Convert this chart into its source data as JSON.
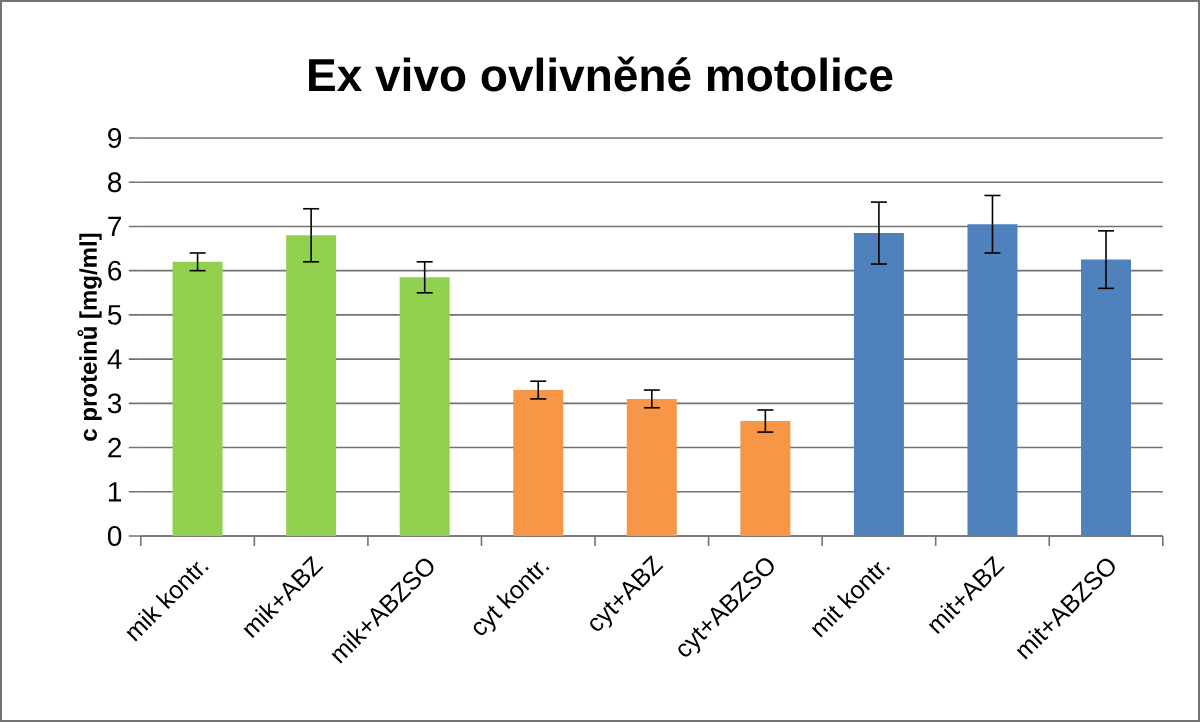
{
  "chart_data": {
    "type": "bar",
    "title": "Ex vivo ovlivněné motolice",
    "ylabel": "c proteinů [mg/ml]",
    "categories": [
      "mik kontr.",
      "mik+ABZ",
      "mik+ABZSO",
      "cyt kontr.",
      "cyt+ABZ",
      "cyt+ABZSO",
      "mit kontr.",
      "mit+ABZ",
      "mit+ABZSO"
    ],
    "values": [
      6.2,
      6.8,
      5.85,
      3.3,
      3.1,
      2.6,
      6.85,
      7.05,
      6.25
    ],
    "errors": [
      0.2,
      0.6,
      0.35,
      0.2,
      0.2,
      0.25,
      0.7,
      0.65,
      0.65
    ],
    "colors": [
      "#92d050",
      "#92d050",
      "#92d050",
      "#f79646",
      "#f79646",
      "#f79646",
      "#4f81bd",
      "#4f81bd",
      "#4f81bd"
    ],
    "ylim": [
      0,
      9
    ],
    "yticks": [
      0,
      1,
      2,
      3,
      4,
      5,
      6,
      7,
      8,
      9
    ],
    "grid": "y"
  }
}
